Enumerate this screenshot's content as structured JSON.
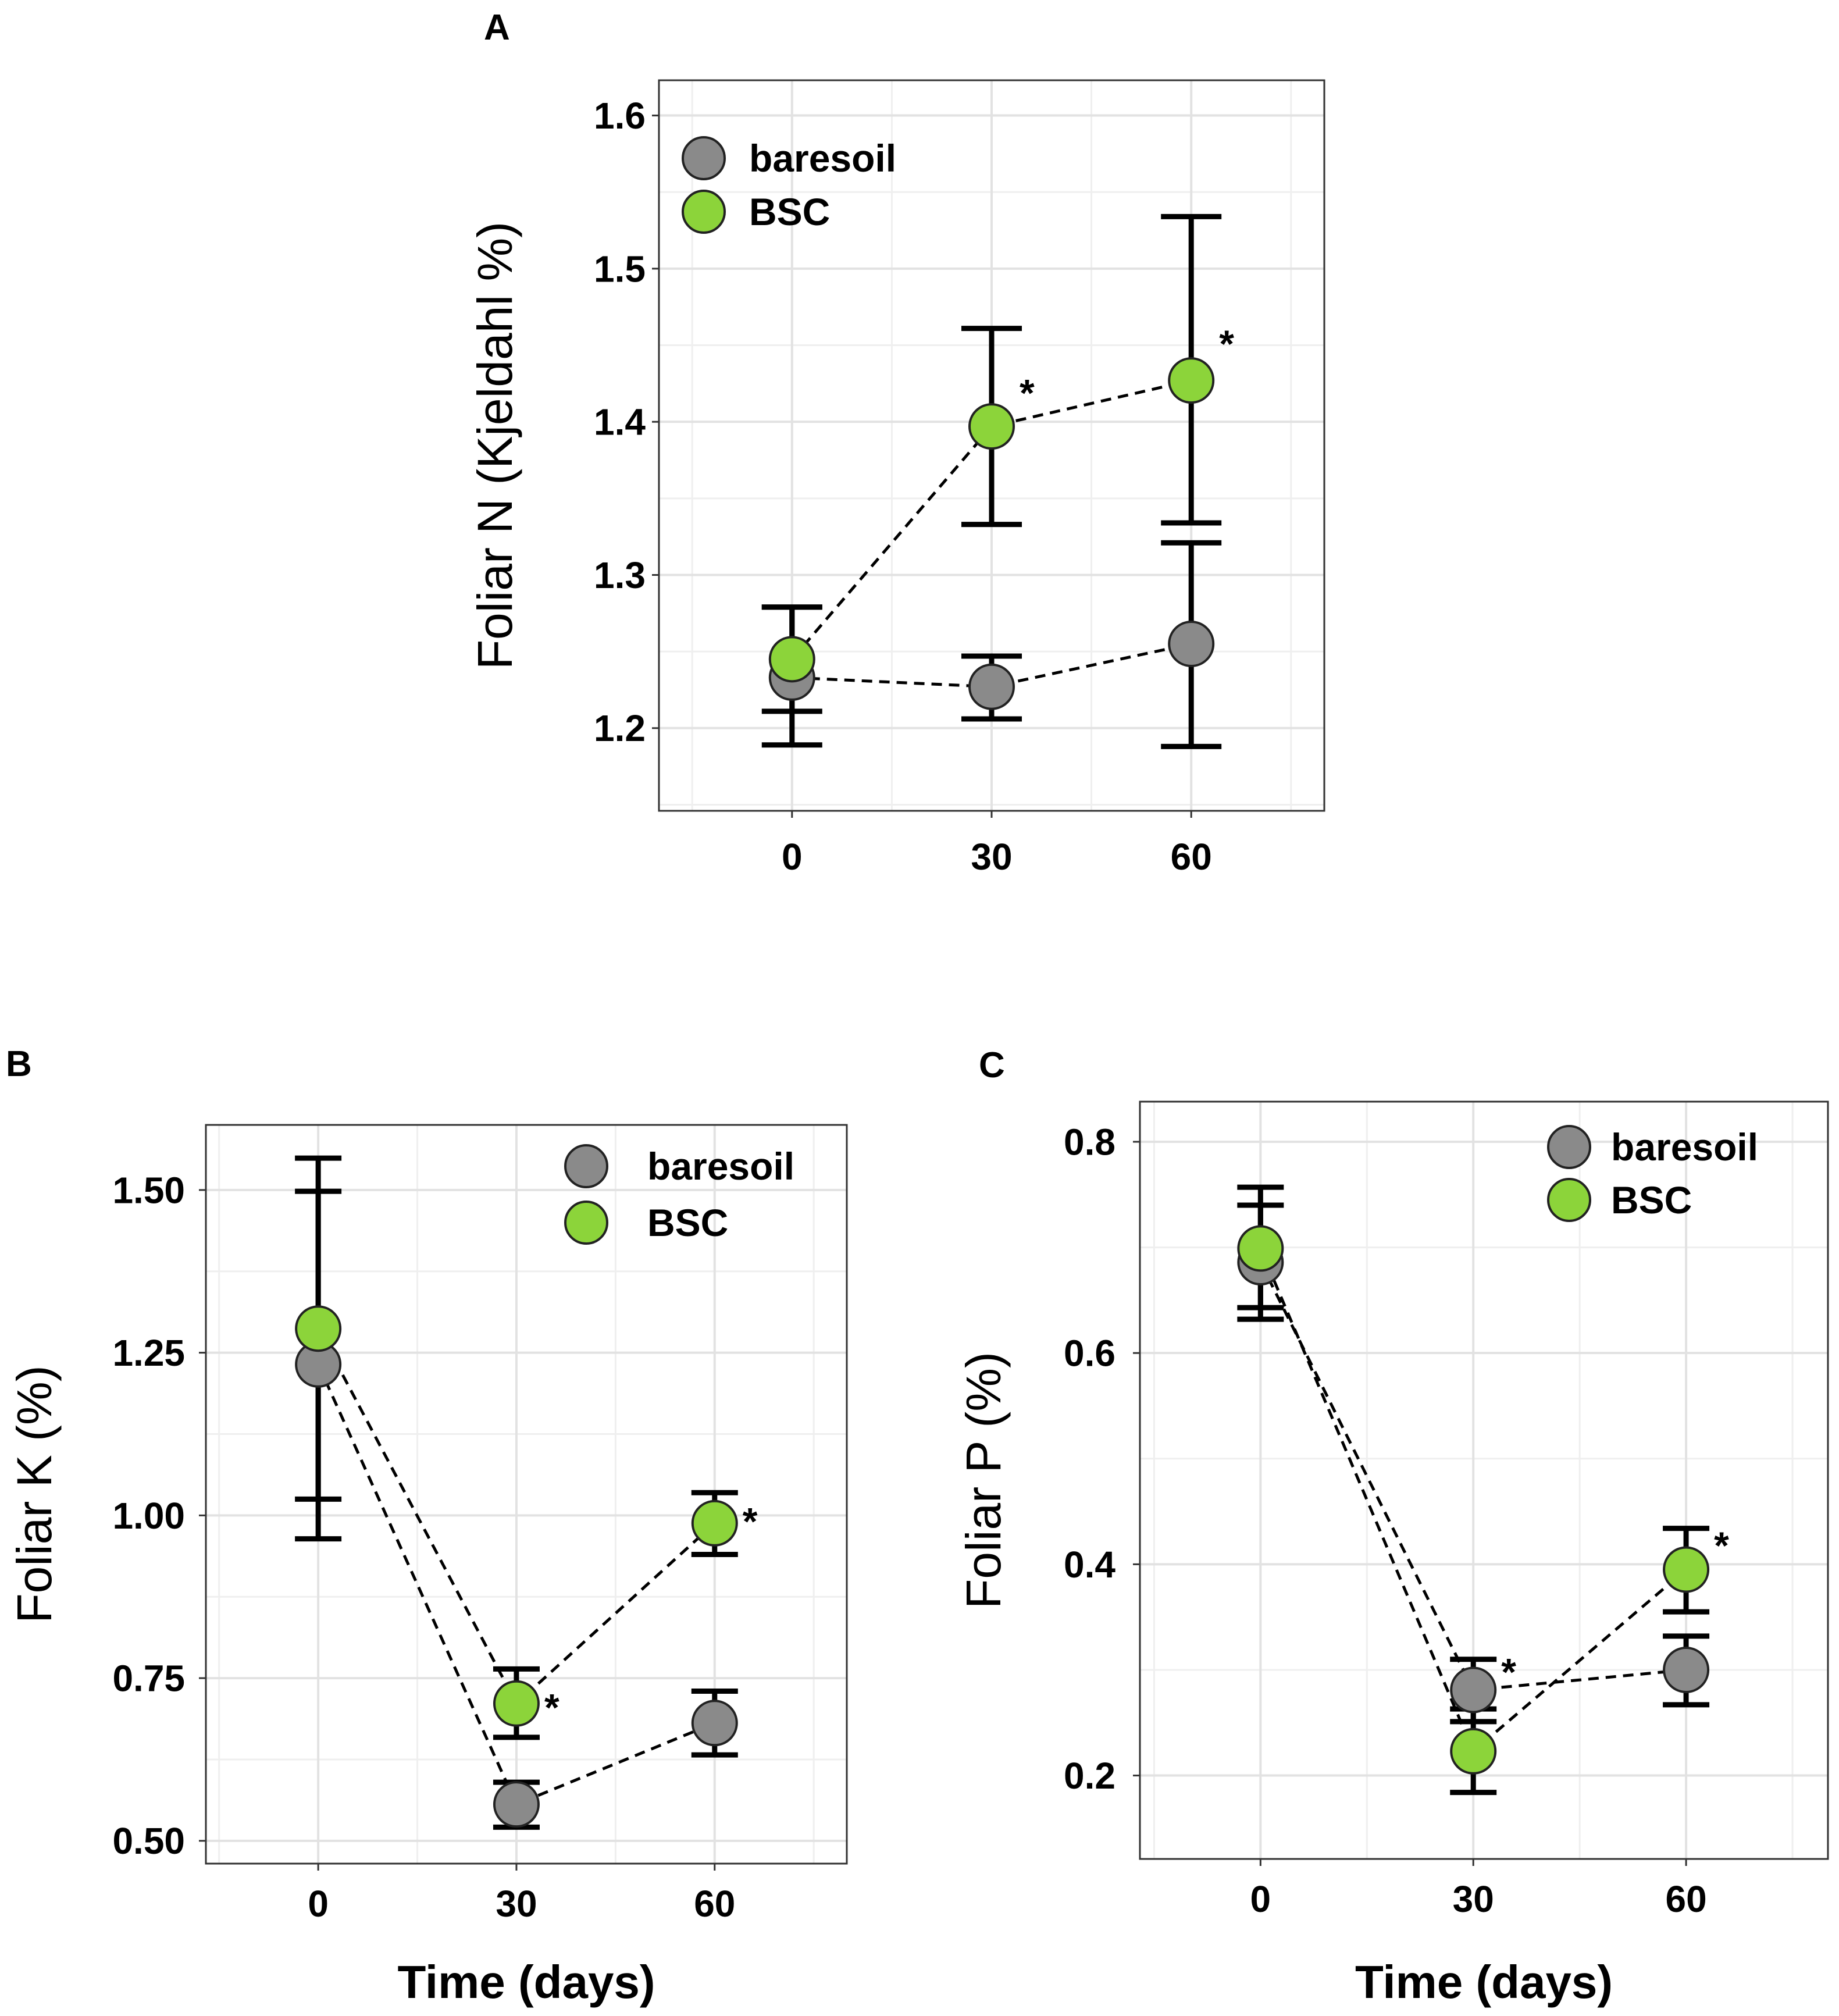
{
  "figure": {
    "palette": {
      "baresoil": "#8a8a8a",
      "BSC": "#8cd43a",
      "grid_major": "#e2e2e2",
      "grid_minor": "#efefef",
      "axis": "#333333",
      "ink": "#000000"
    }
  },
  "chart_data": [
    {
      "type": "line",
      "panel": "A",
      "title": "",
      "xlabel": "",
      "ylabel": "Foliar N (Kjeldahl %)",
      "xlim": [
        -20,
        80
      ],
      "ylim": [
        1.146,
        1.623
      ],
      "x": [
        0,
        30,
        60
      ],
      "x_ticks": [
        "0",
        "30",
        "60"
      ],
      "y_ticks": [
        1.2,
        1.3,
        1.4,
        1.5,
        1.6
      ],
      "y_tick_labels": [
        "1.2",
        "1.3",
        "1.4",
        "1.5",
        "1.6"
      ],
      "legend": {
        "position": "top-left",
        "entries": [
          "baresoil",
          "BSC"
        ]
      },
      "series": [
        {
          "name": "baresoil",
          "values": [
            1.233,
            1.227,
            1.255
          ],
          "err_low": [
            1.189,
            1.206,
            1.188
          ],
          "err_high": [
            1.279,
            1.247,
            1.321
          ]
        },
        {
          "name": "BSC",
          "values": [
            1.245,
            1.397,
            1.427
          ],
          "err_low": [
            1.211,
            1.333,
            1.334
          ],
          "err_high": [
            1.279,
            1.461,
            1.534
          ]
        }
      ],
      "annotations": [
        {
          "text": "*",
          "x": 30,
          "y": 1.419
        },
        {
          "text": "*",
          "x": 60,
          "y": 1.451
        }
      ]
    },
    {
      "type": "line",
      "panel": "B",
      "title": "",
      "xlabel": "Time (days)",
      "ylabel": "Foliar K (%)",
      "xlim": [
        -17,
        80
      ],
      "ylim": [
        0.465,
        1.6
      ],
      "x": [
        0,
        30,
        60
      ],
      "x_ticks": [
        "0",
        "30",
        "60"
      ],
      "y_ticks": [
        0.5,
        0.75,
        1.0,
        1.25,
        1.5
      ],
      "y_tick_labels": [
        "0.50",
        "0.75",
        "1.00",
        "1.25",
        "1.50"
      ],
      "legend": {
        "position": "top-right",
        "entries": [
          "baresoil",
          "BSC"
        ]
      },
      "series": [
        {
          "name": "baresoil",
          "values": [
            1.232,
            0.556,
            0.681
          ],
          "err_low": [
            0.964,
            0.521,
            0.632
          ],
          "err_high": [
            1.498,
            0.59,
            0.73
          ]
        },
        {
          "name": "BSC",
          "values": [
            1.287,
            0.711,
            0.988
          ],
          "err_low": [
            1.025,
            0.659,
            0.94
          ],
          "err_high": [
            1.549,
            0.764,
            1.035
          ]
        }
      ],
      "annotations": [
        {
          "text": "*",
          "x": 30,
          "y": 0.705
        },
        {
          "text": "*",
          "x": 60,
          "y": 0.991
        }
      ]
    },
    {
      "type": "line",
      "panel": "C",
      "title": "",
      "xlabel": "Time (days)",
      "ylabel": "Foliar P (%)",
      "xlim": [
        -17,
        80
      ],
      "ylim": [
        0.121,
        0.838
      ],
      "x": [
        0,
        30,
        60
      ],
      "x_ticks": [
        "0",
        "30",
        "60"
      ],
      "y_ticks": [
        0.2,
        0.4,
        0.6,
        0.8
      ],
      "y_tick_labels": [
        "0.2",
        "0.4",
        "0.6",
        "0.8"
      ],
      "legend": {
        "position": "top-right",
        "entries": [
          "baresoil",
          "BSC"
        ]
      },
      "series": [
        {
          "name": "baresoil",
          "values": [
            0.686,
            0.281,
            0.3
          ],
          "err_low": [
            0.632,
            0.251,
            0.267
          ],
          "err_high": [
            0.74,
            0.31,
            0.332
          ]
        },
        {
          "name": "BSC",
          "values": [
            0.699,
            0.223,
            0.395
          ],
          "err_low": [
            0.643,
            0.184,
            0.355
          ],
          "err_high": [
            0.757,
            0.263,
            0.434
          ]
        }
      ],
      "annotations": [
        {
          "text": "*",
          "x": 30,
          "y": 0.298
        },
        {
          "text": "*",
          "x": 60,
          "y": 0.418
        }
      ]
    }
  ]
}
